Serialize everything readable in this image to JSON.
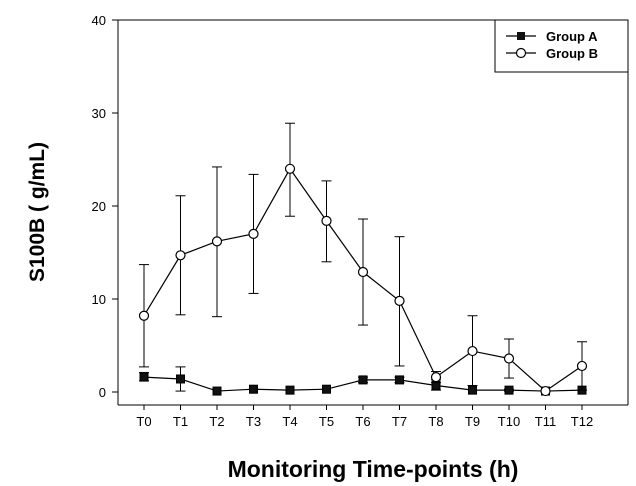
{
  "chart_data": {
    "type": "line",
    "categories": [
      "T0",
      "T1",
      "T2",
      "T3",
      "T4",
      "T5",
      "T6",
      "T7",
      "T8",
      "T9",
      "T10",
      "T11",
      "T12"
    ],
    "xlabel": "Monitoring Time-points (h)",
    "ylabel": "S100B (  g/mL)",
    "ylim": [
      0,
      40
    ],
    "yticks": [
      0,
      10,
      20,
      30,
      40
    ],
    "legend_position": "top-right",
    "grid": false,
    "series": [
      {
        "name": "Group A",
        "marker": "filled-square",
        "values": [
          1.6,
          1.4,
          0.1,
          0.3,
          0.2,
          0.3,
          1.3,
          1.3,
          0.7,
          0.2,
          0.2,
          0.1,
          0.2
        ],
        "error_upper": [
          2.1,
          2.7,
          0.1,
          0.3,
          0.2,
          0.3,
          1.6,
          1.6,
          1.3,
          0.2,
          0.3,
          0.1,
          0.2
        ],
        "error_lower": [
          1.2,
          0.1,
          0.0,
          0.2,
          0.1,
          0.3,
          1.0,
          1.0,
          0.2,
          0.1,
          0.1,
          0.1,
          0.1
        ]
      },
      {
        "name": "Group B",
        "marker": "open-circle",
        "values": [
          8.2,
          14.7,
          16.2,
          17.0,
          24.0,
          18.4,
          12.9,
          9.8,
          1.6,
          4.4,
          3.6,
          0.1,
          2.8
        ],
        "error_upper": [
          13.7,
          21.1,
          24.2,
          23.4,
          28.9,
          22.7,
          18.6,
          16.7,
          2.2,
          8.2,
          5.7,
          0.1,
          5.4
        ],
        "error_lower": [
          2.7,
          8.3,
          8.1,
          10.6,
          18.9,
          14.0,
          7.2,
          2.8,
          1.0,
          0.7,
          1.5,
          0.1,
          0.2
        ]
      }
    ]
  }
}
